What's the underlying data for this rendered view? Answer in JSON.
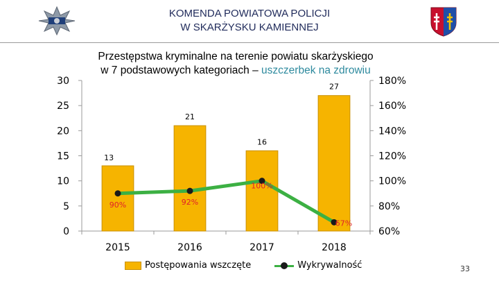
{
  "header": {
    "org_line1": "KOMENDA POWIATOWA POLICJI",
    "org_line2": "W SKARŻYSKU KAMIENNEJ"
  },
  "title": {
    "line1": "Przestępstwa kryminalne na terenie powiatu skarżyskiego",
    "line2_prefix": "w 7 podstawowych kategoriach – ",
    "line2_highlight": "uszczerbek na zdrowiu"
  },
  "legend": {
    "bars": "Postępowania wszczęte",
    "line": "Wykrywalność"
  },
  "page_number": "33",
  "colors": {
    "bar": "#f6b400",
    "line": "#3cb043",
    "marker": "#1a1a1a",
    "rate_label": "#e0202a",
    "title_highlight": "#2e8a9e"
  },
  "chart_data": {
    "type": "bar",
    "categories": [
      "2015",
      "2016",
      "2017",
      "2018"
    ],
    "series": [
      {
        "name": "Postępowania wszczęte",
        "type": "bar",
        "axis": "left",
        "values": [
          13,
          21,
          16,
          27
        ],
        "labels": [
          "13",
          "21",
          "16",
          "27"
        ]
      },
      {
        "name": "Wykrywalność",
        "type": "line",
        "axis": "right",
        "values": [
          90,
          92,
          100,
          67
        ],
        "labels": [
          "90%",
          "92%",
          "100%",
          "67%"
        ]
      }
    ],
    "y_left": {
      "ticks": [
        "0",
        "5",
        "10",
        "15",
        "20",
        "25",
        "30"
      ],
      "range": [
        0,
        30
      ]
    },
    "y_right": {
      "ticks": [
        "60%",
        "80%",
        "100%",
        "120%",
        "140%",
        "160%",
        "180%"
      ],
      "range": [
        60,
        180
      ]
    },
    "legend_position": "bottom",
    "grid": false
  }
}
